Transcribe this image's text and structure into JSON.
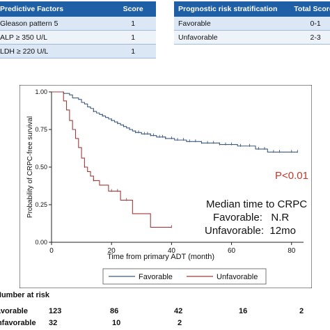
{
  "predictive_table": {
    "headers": [
      "Predictive Factors",
      "Score"
    ],
    "rows": [
      {
        "factor": "Gleason pattern 5",
        "score": "1"
      },
      {
        "factor": "ALP   ≥ 350  U/L",
        "score": "1"
      },
      {
        "factor": "LDH   ≥ 220  U/L",
        "score": "1"
      }
    ]
  },
  "stratification_table": {
    "headers": [
      "Prognostic risk stratification",
      "Total Score"
    ],
    "rows": [
      {
        "group": "Favorable",
        "score": "0-1"
      },
      {
        "group": "Unfavorable",
        "score": "2-3"
      }
    ]
  },
  "chart_data": {
    "type": "line",
    "step": true,
    "xlabel": "Time from primary ADT (month)",
    "ylabel": "Probability of CRPC-free survival",
    "xlim": [
      0,
      84
    ],
    "ylim": [
      0,
      1
    ],
    "xticks": [
      0,
      20,
      40,
      60,
      80
    ],
    "yticks": [
      0.0,
      0.25,
      0.5,
      0.75,
      1.0
    ],
    "ytick_labels": [
      "0.00",
      "0.25",
      "0.50",
      "0.75",
      "1.00"
    ],
    "series": [
      {
        "name": "Favorable",
        "color": "#3d5a80",
        "x": [
          0,
          4,
          6,
          7,
          9,
          10,
          11,
          12,
          13,
          14,
          15,
          16,
          17,
          18,
          19,
          20,
          21,
          22,
          23,
          24,
          25,
          26,
          27,
          28,
          30,
          33,
          35,
          38,
          41,
          45,
          50,
          56,
          62,
          68,
          72,
          82
        ],
        "y": [
          1.0,
          0.99,
          0.98,
          0.96,
          0.95,
          0.93,
          0.92,
          0.9,
          0.89,
          0.87,
          0.86,
          0.85,
          0.84,
          0.83,
          0.82,
          0.81,
          0.8,
          0.79,
          0.78,
          0.77,
          0.76,
          0.75,
          0.74,
          0.73,
          0.72,
          0.71,
          0.7,
          0.69,
          0.68,
          0.67,
          0.66,
          0.65,
          0.64,
          0.62,
          0.6,
          0.6
        ],
        "censors_x": [
          14,
          17,
          20,
          22,
          24,
          26,
          28,
          29,
          31,
          32,
          33,
          34,
          36,
          37,
          38,
          40,
          42,
          44,
          46,
          48,
          50,
          52,
          54,
          56,
          58,
          60,
          63,
          66,
          69,
          71,
          74,
          76,
          80,
          82
        ]
      },
      {
        "name": "Unfavorable",
        "color": "#a23b3b",
        "x": [
          0,
          4,
          5,
          6,
          7,
          8,
          9,
          10,
          11,
          12,
          13,
          14,
          16,
          19,
          23,
          27,
          33,
          36,
          40
        ],
        "y": [
          1.0,
          0.94,
          0.88,
          0.81,
          0.75,
          0.69,
          0.63,
          0.56,
          0.5,
          0.47,
          0.44,
          0.41,
          0.38,
          0.34,
          0.28,
          0.19,
          0.1,
          0.1,
          0.1
        ],
        "censors_x": [
          11,
          14,
          20,
          22,
          25,
          40
        ]
      }
    ],
    "annotations": {
      "p_value": "P<0.01",
      "median_title": "Median time to CRPC",
      "median_favorable": "Favorable:   N.R",
      "median_unfavorable": "Unfavorable:  12mo"
    },
    "legend": [
      "Favorable",
      "Unfavorable"
    ],
    "legend_placement": "bottom",
    "grid": false
  },
  "risk_table": {
    "title": "Number at risk",
    "rows": [
      {
        "label": "Favorable",
        "values": [
          "123",
          "86",
          "42",
          "16",
          "2"
        ]
      },
      {
        "label": "Unfavorable",
        "values": [
          "32",
          "10",
          "2",
          "",
          ""
        ]
      }
    ]
  }
}
